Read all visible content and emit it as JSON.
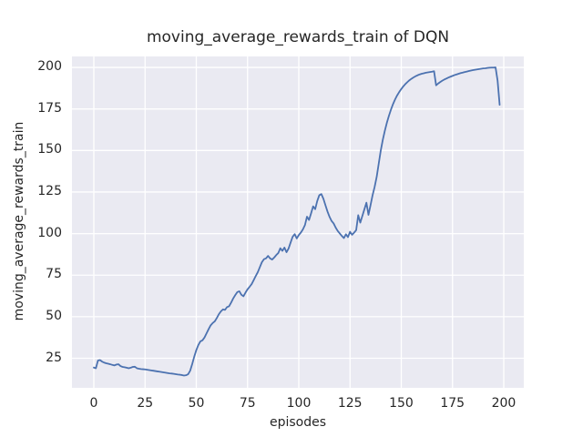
{
  "chart_data": {
    "type": "line",
    "title": "moving_average_rewards_train of DQN",
    "xlabel": "episodes",
    "ylabel": "moving_average_rewards_train",
    "x_ticks": [
      0,
      25,
      50,
      75,
      100,
      125,
      150,
      175,
      200
    ],
    "y_ticks": [
      25,
      50,
      75,
      100,
      125,
      150,
      175,
      200
    ],
    "xlim": [
      -10.67,
      209.78
    ],
    "ylim": [
      7.2,
      206.6
    ],
    "grid": true,
    "legend": "none",
    "x_start": 0,
    "x_step": 1,
    "values": [
      19.4,
      19.0,
      23.6,
      23.9,
      23.0,
      22.4,
      22.0,
      21.7,
      21.4,
      21.0,
      20.7,
      21.2,
      21.4,
      20.3,
      19.8,
      19.6,
      19.3,
      19.0,
      19.3,
      19.8,
      19.9,
      19.0,
      18.7,
      18.5,
      18.4,
      18.3,
      18.1,
      17.9,
      17.7,
      17.5,
      17.3,
      17.1,
      16.9,
      16.7,
      16.5,
      16.3,
      16.1,
      15.9,
      15.8,
      15.6,
      15.4,
      15.2,
      15.1,
      14.9,
      14.6,
      14.8,
      15.4,
      17.5,
      21.5,
      26.0,
      29.9,
      33.0,
      35.2,
      35.8,
      37.5,
      40.0,
      42.5,
      44.8,
      46.2,
      47.2,
      49.2,
      51.5,
      53.2,
      54.4,
      54.1,
      55.8,
      56.3,
      58.5,
      61.0,
      63.0,
      64.8,
      65.3,
      63.2,
      62.3,
      64.5,
      66.5,
      68.0,
      69.6,
      72.0,
      74.5,
      76.8,
      79.8,
      82.8,
      84.6,
      85.1,
      86.6,
      85.1,
      84.4,
      85.6,
      87.1,
      88.3,
      91.2,
      89.6,
      91.6,
      88.8,
      91.0,
      94.6,
      98.1,
      99.7,
      97.1,
      99.1,
      100.6,
      102.5,
      105.1,
      110.2,
      108.2,
      112.2,
      116.4,
      114.7,
      119.6,
      123.1,
      123.8,
      121.0,
      117.1,
      113.3,
      110.1,
      107.6,
      106.1,
      103.6,
      101.6,
      100.1,
      98.6,
      97.3,
      99.6,
      97.9,
      101.1,
      99.3,
      100.6,
      102.1,
      111.1,
      106.6,
      110.6,
      114.6,
      118.6,
      111.3,
      117.1,
      123.1,
      128.1,
      134.1,
      142.1,
      150.0,
      156.5,
      162.0,
      166.8,
      171.0,
      174.7,
      178.0,
      180.8,
      183.2,
      185.2,
      187.0,
      188.6,
      190.0,
      191.2,
      192.3,
      193.2,
      194.0,
      194.7,
      195.3,
      195.8,
      196.2,
      196.5,
      196.8,
      197.0,
      197.2,
      197.4,
      197.7,
      189.2,
      190.3,
      191.2,
      192.0,
      192.7,
      193.3,
      193.9,
      194.4,
      194.9,
      195.4,
      195.8,
      196.2,
      196.6,
      196.9,
      197.2,
      197.5,
      197.8,
      198.1,
      198.4,
      198.6,
      198.8,
      199.0,
      199.2,
      199.4,
      199.5,
      199.7,
      199.8,
      199.9,
      199.9,
      200.0,
      192.0,
      177.5
    ],
    "colors": {
      "line": "#4c72b0",
      "plot_background": "#eaeaf2",
      "grid": "#ffffff",
      "text": "#262626",
      "figure_background": "#ffffff"
    }
  }
}
